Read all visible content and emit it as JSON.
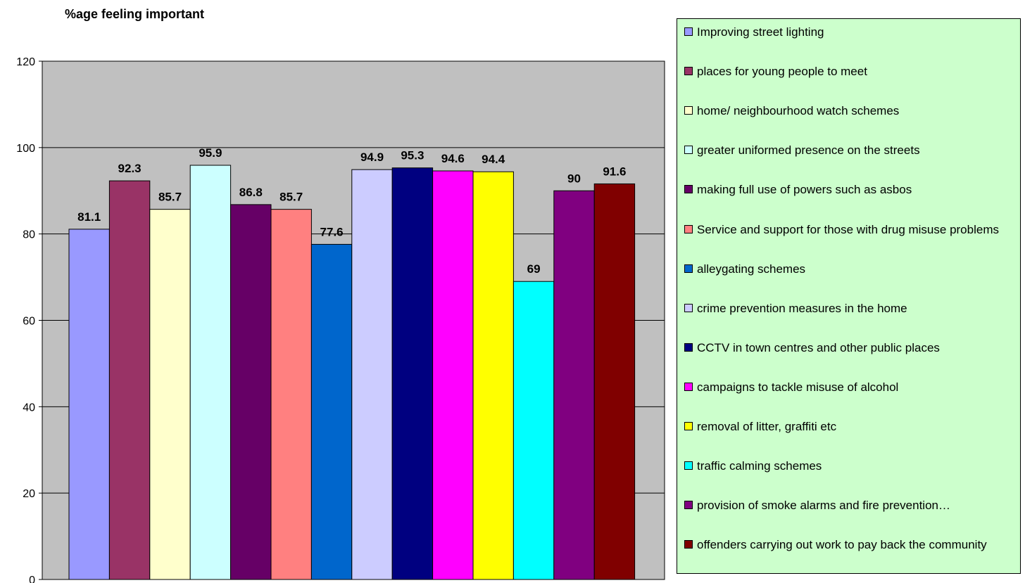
{
  "chart_data": {
    "type": "bar",
    "title": "%age feeling important",
    "xlabel": "",
    "ylabel": "",
    "ylim": [
      0,
      120
    ],
    "y_ticks": [
      0,
      20,
      40,
      60,
      80,
      100,
      120
    ],
    "grid": true,
    "plot_background": "#c0c0c0",
    "legend_position": "right",
    "legend_background": "#ccffcc",
    "categories": [
      "Improving street lighting",
      " places for young people to meet",
      "home/ neighbourhood watch schemes",
      "greater uniformed presence on the streets",
      "making full use of powers such as asbos",
      "Service and support for those with drug misuse problems",
      "alleygating schemes",
      " crime prevention measures in the home",
      "CCTV in town centres and other public places",
      " campaigns to tackle misuse of alcohol",
      "removal of litter, graffiti etc",
      " traffic calming schemes",
      " provision of smoke alarms and fire prevention…",
      "offenders carrying out work to pay back the community"
    ],
    "values": [
      81.1,
      92.3,
      85.7,
      95.9,
      86.8,
      85.7,
      77.6,
      94.9,
      95.3,
      94.6,
      94.4,
      69,
      90,
      91.6
    ],
    "value_labels": [
      "81.1",
      "92.3",
      "85.7",
      "95.9",
      "86.8",
      "85.7",
      "77.6",
      "94.9",
      "95.3",
      "94.6",
      "94.4",
      "69",
      "90",
      "91.6"
    ],
    "colors": [
      "#9999ff",
      "#993366",
      "#ffffcc",
      "#ccffff",
      "#660066",
      "#ff8080",
      "#0066cc",
      "#ccccff",
      "#000080",
      "#ff00ff",
      "#ffff00",
      "#00ffff",
      "#800080",
      "#800000"
    ]
  }
}
